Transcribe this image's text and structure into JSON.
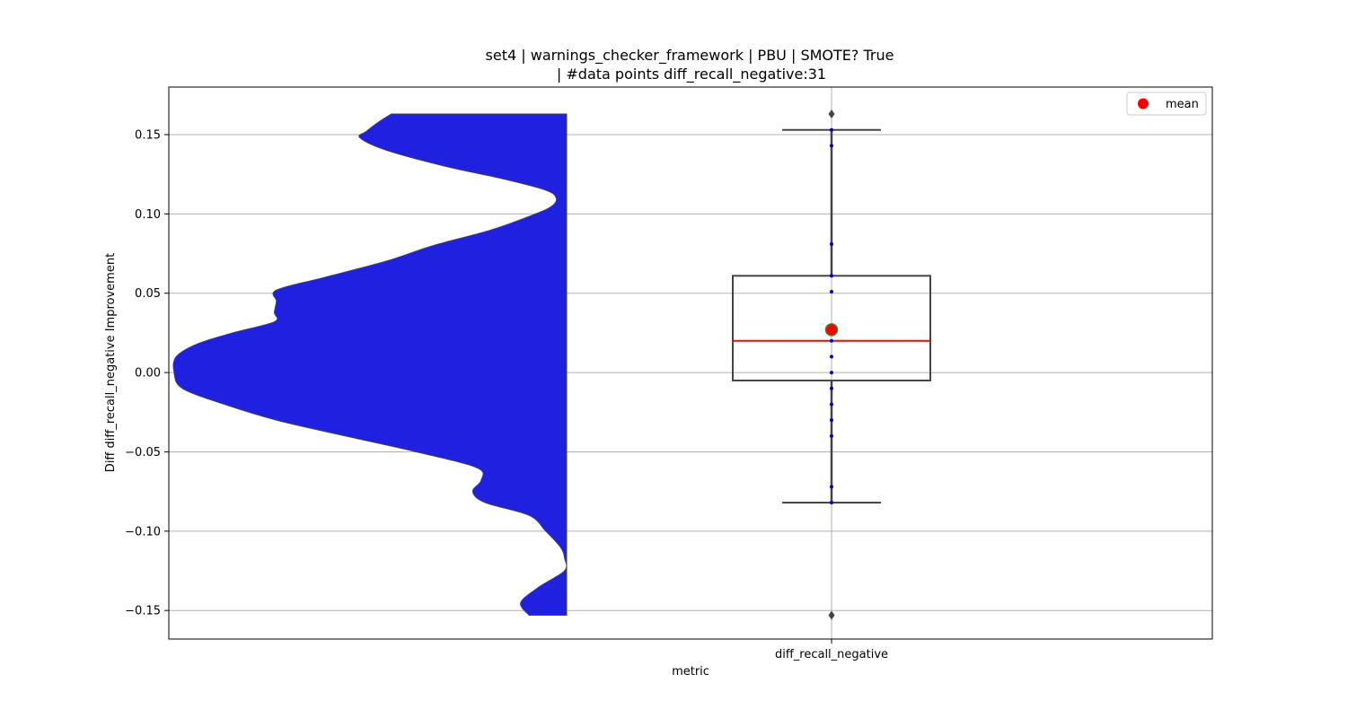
{
  "chart_data": {
    "type": "violin+box",
    "title_line1": "set4 | warnings_checker_framework | PBU | SMOTE? True",
    "title_line2": "| #data points diff_recall_negative:31",
    "xlabel": "metric",
    "ylabel": "Diff diff_recall_negative Improvement",
    "categories": [
      "diff_recall_negative"
    ],
    "ylim": [
      -0.168,
      0.18
    ],
    "yticks": [
      0.15,
      0.1,
      0.05,
      0.0,
      -0.05,
      -0.1,
      -0.15
    ],
    "ytick_labels": [
      "0.15",
      "0.10",
      "0.05",
      "0.00",
      "−0.05",
      "−0.10",
      "−0.15"
    ],
    "grid": true,
    "legend": {
      "position": "top-right",
      "entries": [
        {
          "label": "mean",
          "color": "#ff0000"
        }
      ]
    },
    "colors": {
      "violin_fill": "#2020e0",
      "violin_edge": "#444444",
      "median": "#ff0000",
      "mean_fill": "#ff0000",
      "mean_edge": "#2e8b2e",
      "box_edge": "#444444",
      "points": "#0000cc",
      "outlier": "#444444"
    },
    "box": {
      "q1": -0.005,
      "median": 0.02,
      "q3": 0.061,
      "whisker_low": -0.082,
      "whisker_high": 0.153,
      "mean": 0.027,
      "outliers": [
        0.163,
        -0.153
      ]
    },
    "points": [
      0.153,
      0.143,
      0.081,
      0.061,
      0.051,
      0.02,
      0.01,
      0.0,
      -0.01,
      -0.02,
      -0.03,
      -0.04,
      -0.072,
      -0.082
    ],
    "violin": {
      "range": [
        -0.153,
        0.163
      ],
      "density_y": [
        -0.153,
        -0.145,
        -0.135,
        -0.125,
        -0.117,
        -0.11,
        -0.1,
        -0.09,
        -0.082,
        -0.075,
        -0.068,
        -0.06,
        -0.05,
        -0.04,
        -0.03,
        -0.02,
        -0.01,
        0.0,
        0.01,
        0.018,
        0.025,
        0.032,
        0.038,
        0.045,
        0.052,
        0.06,
        0.07,
        0.08,
        0.09,
        0.1,
        0.105,
        0.11,
        0.115,
        0.122,
        0.13,
        0.14,
        0.148,
        0.152,
        0.158,
        0.163
      ],
      "density": [
        0.09,
        0.11,
        0.065,
        0.005,
        0.005,
        0.015,
        0.05,
        0.09,
        0.195,
        0.225,
        0.205,
        0.215,
        0.36,
        0.53,
        0.695,
        0.82,
        0.92,
        0.94,
        0.935,
        0.885,
        0.8,
        0.7,
        0.7,
        0.695,
        0.695,
        0.58,
        0.435,
        0.32,
        0.18,
        0.075,
        0.035,
        0.025,
        0.05,
        0.15,
        0.29,
        0.43,
        0.495,
        0.48,
        0.45,
        0.42
      ]
    }
  }
}
